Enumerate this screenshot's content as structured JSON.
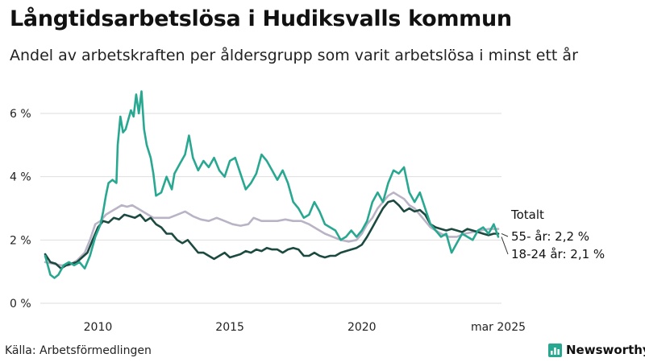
{
  "title": "Långtidsarbetslösa i Hudiksvalls kommun",
  "subtitle": "Andel av arbetskraften per åldersgrupp som varit arbetslösa i minst ett år",
  "source": "Källa: Arbetsförmedlingen",
  "brand": {
    "name": "Newsworthy",
    "icon": "bar-chart-icon",
    "color": "#29a891"
  },
  "chart_data": {
    "type": "line",
    "title": "Långtidsarbetslösa i Hudiksvalls kommun",
    "subtitle": "Andel av arbetskraften per åldersgrupp som varit arbetslösa i minst ett år",
    "xlabel": "",
    "ylabel": "",
    "xlim": [
      2008.0,
      2025.17
    ],
    "ylim": [
      0,
      7
    ],
    "yticks": [
      0,
      2,
      4,
      6
    ],
    "ytick_labels": [
      "0 %",
      "2 %",
      "4 %",
      "6 %"
    ],
    "xticks": [
      2010,
      2015,
      2020,
      2025.17
    ],
    "xtick_labels": [
      "2010",
      "2015",
      "2020",
      "mar 2025"
    ],
    "grid": true,
    "legend": "end-labels",
    "series": [
      {
        "name": "Totalt",
        "color": "#b9b3c6",
        "end_label": "Totalt",
        "points": [
          [
            2008.0,
            1.3
          ],
          [
            2008.3,
            1.25
          ],
          [
            2008.6,
            1.2
          ],
          [
            2008.9,
            1.2
          ],
          [
            2009.2,
            1.35
          ],
          [
            2009.5,
            1.6
          ],
          [
            2009.7,
            2.0
          ],
          [
            2009.9,
            2.5
          ],
          [
            2010.1,
            2.6
          ],
          [
            2010.3,
            2.8
          ],
          [
            2010.5,
            2.9
          ],
          [
            2010.7,
            3.0
          ],
          [
            2010.9,
            3.1
          ],
          [
            2011.1,
            3.05
          ],
          [
            2011.3,
            3.1
          ],
          [
            2011.5,
            3.0
          ],
          [
            2011.7,
            2.9
          ],
          [
            2011.9,
            2.8
          ],
          [
            2012.1,
            2.7
          ],
          [
            2012.4,
            2.7
          ],
          [
            2012.7,
            2.7
          ],
          [
            2013.0,
            2.8
          ],
          [
            2013.3,
            2.9
          ],
          [
            2013.6,
            2.75
          ],
          [
            2013.9,
            2.65
          ],
          [
            2014.2,
            2.6
          ],
          [
            2014.5,
            2.7
          ],
          [
            2014.8,
            2.6
          ],
          [
            2015.1,
            2.5
          ],
          [
            2015.4,
            2.45
          ],
          [
            2015.7,
            2.5
          ],
          [
            2015.9,
            2.7
          ],
          [
            2016.2,
            2.6
          ],
          [
            2016.5,
            2.6
          ],
          [
            2016.8,
            2.6
          ],
          [
            2017.1,
            2.65
          ],
          [
            2017.4,
            2.6
          ],
          [
            2017.7,
            2.6
          ],
          [
            2018.0,
            2.5
          ],
          [
            2018.3,
            2.35
          ],
          [
            2018.6,
            2.2
          ],
          [
            2018.9,
            2.1
          ],
          [
            2019.2,
            2.0
          ],
          [
            2019.5,
            1.95
          ],
          [
            2019.8,
            2.0
          ],
          [
            2020.0,
            2.2
          ],
          [
            2020.2,
            2.5
          ],
          [
            2020.4,
            2.7
          ],
          [
            2020.6,
            3.0
          ],
          [
            2020.8,
            3.2
          ],
          [
            2021.0,
            3.4
          ],
          [
            2021.2,
            3.5
          ],
          [
            2021.4,
            3.4
          ],
          [
            2021.6,
            3.3
          ],
          [
            2021.8,
            3.1
          ],
          [
            2022.0,
            3.0
          ],
          [
            2022.2,
            2.8
          ],
          [
            2022.4,
            2.6
          ],
          [
            2022.6,
            2.4
          ],
          [
            2022.8,
            2.3
          ],
          [
            2023.0,
            2.2
          ],
          [
            2023.3,
            2.1
          ],
          [
            2023.6,
            2.1
          ],
          [
            2023.9,
            2.2
          ],
          [
            2024.2,
            2.25
          ],
          [
            2024.5,
            2.3
          ],
          [
            2024.8,
            2.35
          ],
          [
            2025.0,
            2.35
          ],
          [
            2025.17,
            2.35
          ]
        ]
      },
      {
        "name": "55- år",
        "color": "#1c4a40",
        "end_label": "55- år: 2,2 %",
        "points": [
          [
            2008.0,
            1.55
          ],
          [
            2008.2,
            1.3
          ],
          [
            2008.4,
            1.25
          ],
          [
            2008.6,
            1.1
          ],
          [
            2008.8,
            1.2
          ],
          [
            2009.0,
            1.25
          ],
          [
            2009.2,
            1.3
          ],
          [
            2009.4,
            1.45
          ],
          [
            2009.6,
            1.6
          ],
          [
            2009.8,
            2.0
          ],
          [
            2010.0,
            2.4
          ],
          [
            2010.2,
            2.6
          ],
          [
            2010.4,
            2.55
          ],
          [
            2010.6,
            2.7
          ],
          [
            2010.8,
            2.65
          ],
          [
            2011.0,
            2.8
          ],
          [
            2011.2,
            2.75
          ],
          [
            2011.4,
            2.7
          ],
          [
            2011.6,
            2.8
          ],
          [
            2011.8,
            2.6
          ],
          [
            2012.0,
            2.7
          ],
          [
            2012.2,
            2.5
          ],
          [
            2012.4,
            2.4
          ],
          [
            2012.6,
            2.2
          ],
          [
            2012.8,
            2.2
          ],
          [
            2013.0,
            2.0
          ],
          [
            2013.2,
            1.9
          ],
          [
            2013.4,
            2.0
          ],
          [
            2013.6,
            1.8
          ],
          [
            2013.8,
            1.6
          ],
          [
            2014.0,
            1.6
          ],
          [
            2014.2,
            1.5
          ],
          [
            2014.4,
            1.4
          ],
          [
            2014.6,
            1.5
          ],
          [
            2014.8,
            1.6
          ],
          [
            2015.0,
            1.45
          ],
          [
            2015.2,
            1.5
          ],
          [
            2015.4,
            1.55
          ],
          [
            2015.6,
            1.65
          ],
          [
            2015.8,
            1.6
          ],
          [
            2016.0,
            1.7
          ],
          [
            2016.2,
            1.65
          ],
          [
            2016.4,
            1.75
          ],
          [
            2016.6,
            1.7
          ],
          [
            2016.8,
            1.7
          ],
          [
            2017.0,
            1.6
          ],
          [
            2017.2,
            1.7
          ],
          [
            2017.4,
            1.75
          ],
          [
            2017.6,
            1.7
          ],
          [
            2017.8,
            1.5
          ],
          [
            2018.0,
            1.5
          ],
          [
            2018.2,
            1.6
          ],
          [
            2018.4,
            1.5
          ],
          [
            2018.6,
            1.45
          ],
          [
            2018.8,
            1.5
          ],
          [
            2019.0,
            1.5
          ],
          [
            2019.2,
            1.6
          ],
          [
            2019.4,
            1.65
          ],
          [
            2019.6,
            1.7
          ],
          [
            2019.8,
            1.75
          ],
          [
            2020.0,
            1.85
          ],
          [
            2020.2,
            2.1
          ],
          [
            2020.4,
            2.4
          ],
          [
            2020.6,
            2.7
          ],
          [
            2020.8,
            3.0
          ],
          [
            2021.0,
            3.2
          ],
          [
            2021.2,
            3.25
          ],
          [
            2021.4,
            3.1
          ],
          [
            2021.6,
            2.9
          ],
          [
            2021.8,
            3.0
          ],
          [
            2022.0,
            2.9
          ],
          [
            2022.2,
            2.95
          ],
          [
            2022.4,
            2.8
          ],
          [
            2022.6,
            2.5
          ],
          [
            2022.8,
            2.4
          ],
          [
            2023.0,
            2.35
          ],
          [
            2023.2,
            2.3
          ],
          [
            2023.4,
            2.35
          ],
          [
            2023.6,
            2.3
          ],
          [
            2023.8,
            2.25
          ],
          [
            2024.0,
            2.35
          ],
          [
            2024.2,
            2.3
          ],
          [
            2024.4,
            2.25
          ],
          [
            2024.6,
            2.2
          ],
          [
            2024.8,
            2.15
          ],
          [
            2025.0,
            2.2
          ],
          [
            2025.17,
            2.2
          ]
        ]
      },
      {
        "name": "18-24 år",
        "color": "#29a891",
        "end_label": "18-24 år: 2,1 %",
        "points": [
          [
            2008.0,
            1.5
          ],
          [
            2008.1,
            1.2
          ],
          [
            2008.2,
            0.9
          ],
          [
            2008.35,
            0.8
          ],
          [
            2008.5,
            0.9
          ],
          [
            2008.7,
            1.2
          ],
          [
            2008.9,
            1.3
          ],
          [
            2009.1,
            1.2
          ],
          [
            2009.3,
            1.3
          ],
          [
            2009.5,
            1.1
          ],
          [
            2009.7,
            1.5
          ],
          [
            2009.9,
            2.1
          ],
          [
            2010.0,
            2.3
          ],
          [
            2010.1,
            2.5
          ],
          [
            2010.2,
            2.9
          ],
          [
            2010.3,
            3.4
          ],
          [
            2010.4,
            3.8
          ],
          [
            2010.55,
            3.9
          ],
          [
            2010.7,
            3.8
          ],
          [
            2010.75,
            5.0
          ],
          [
            2010.85,
            5.9
          ],
          [
            2010.95,
            5.4
          ],
          [
            2011.05,
            5.5
          ],
          [
            2011.15,
            5.8
          ],
          [
            2011.25,
            6.1
          ],
          [
            2011.35,
            5.9
          ],
          [
            2011.45,
            6.6
          ],
          [
            2011.55,
            6.0
          ],
          [
            2011.65,
            6.7
          ],
          [
            2011.75,
            5.5
          ],
          [
            2011.85,
            5.0
          ],
          [
            2012.0,
            4.6
          ],
          [
            2012.1,
            4.1
          ],
          [
            2012.2,
            3.4
          ],
          [
            2012.4,
            3.5
          ],
          [
            2012.6,
            4.0
          ],
          [
            2012.8,
            3.6
          ],
          [
            2012.9,
            4.1
          ],
          [
            2013.1,
            4.4
          ],
          [
            2013.3,
            4.7
          ],
          [
            2013.45,
            5.3
          ],
          [
            2013.6,
            4.6
          ],
          [
            2013.8,
            4.2
          ],
          [
            2014.0,
            4.5
          ],
          [
            2014.2,
            4.3
          ],
          [
            2014.4,
            4.6
          ],
          [
            2014.6,
            4.2
          ],
          [
            2014.8,
            4.0
          ],
          [
            2015.0,
            4.5
          ],
          [
            2015.2,
            4.6
          ],
          [
            2015.4,
            4.1
          ],
          [
            2015.6,
            3.6
          ],
          [
            2015.8,
            3.8
          ],
          [
            2016.0,
            4.1
          ],
          [
            2016.2,
            4.7
          ],
          [
            2016.4,
            4.5
          ],
          [
            2016.6,
            4.2
          ],
          [
            2016.8,
            3.9
          ],
          [
            2017.0,
            4.2
          ],
          [
            2017.2,
            3.8
          ],
          [
            2017.4,
            3.2
          ],
          [
            2017.6,
            3.0
          ],
          [
            2017.8,
            2.7
          ],
          [
            2018.0,
            2.8
          ],
          [
            2018.2,
            3.2
          ],
          [
            2018.4,
            2.9
          ],
          [
            2018.6,
            2.5
          ],
          [
            2018.8,
            2.4
          ],
          [
            2019.0,
            2.3
          ],
          [
            2019.2,
            2.0
          ],
          [
            2019.4,
            2.1
          ],
          [
            2019.6,
            2.3
          ],
          [
            2019.8,
            2.1
          ],
          [
            2020.0,
            2.3
          ],
          [
            2020.2,
            2.6
          ],
          [
            2020.4,
            3.2
          ],
          [
            2020.6,
            3.5
          ],
          [
            2020.8,
            3.2
          ],
          [
            2021.0,
            3.8
          ],
          [
            2021.2,
            4.2
          ],
          [
            2021.4,
            4.1
          ],
          [
            2021.6,
            4.3
          ],
          [
            2021.8,
            3.5
          ],
          [
            2022.0,
            3.2
          ],
          [
            2022.2,
            3.5
          ],
          [
            2022.4,
            3.0
          ],
          [
            2022.6,
            2.5
          ],
          [
            2022.8,
            2.3
          ],
          [
            2023.0,
            2.1
          ],
          [
            2023.2,
            2.2
          ],
          [
            2023.4,
            1.6
          ],
          [
            2023.6,
            1.9
          ],
          [
            2023.8,
            2.2
          ],
          [
            2024.0,
            2.1
          ],
          [
            2024.2,
            2.0
          ],
          [
            2024.4,
            2.3
          ],
          [
            2024.6,
            2.4
          ],
          [
            2024.8,
            2.2
          ],
          [
            2025.0,
            2.5
          ],
          [
            2025.17,
            2.1
          ]
        ]
      }
    ]
  }
}
